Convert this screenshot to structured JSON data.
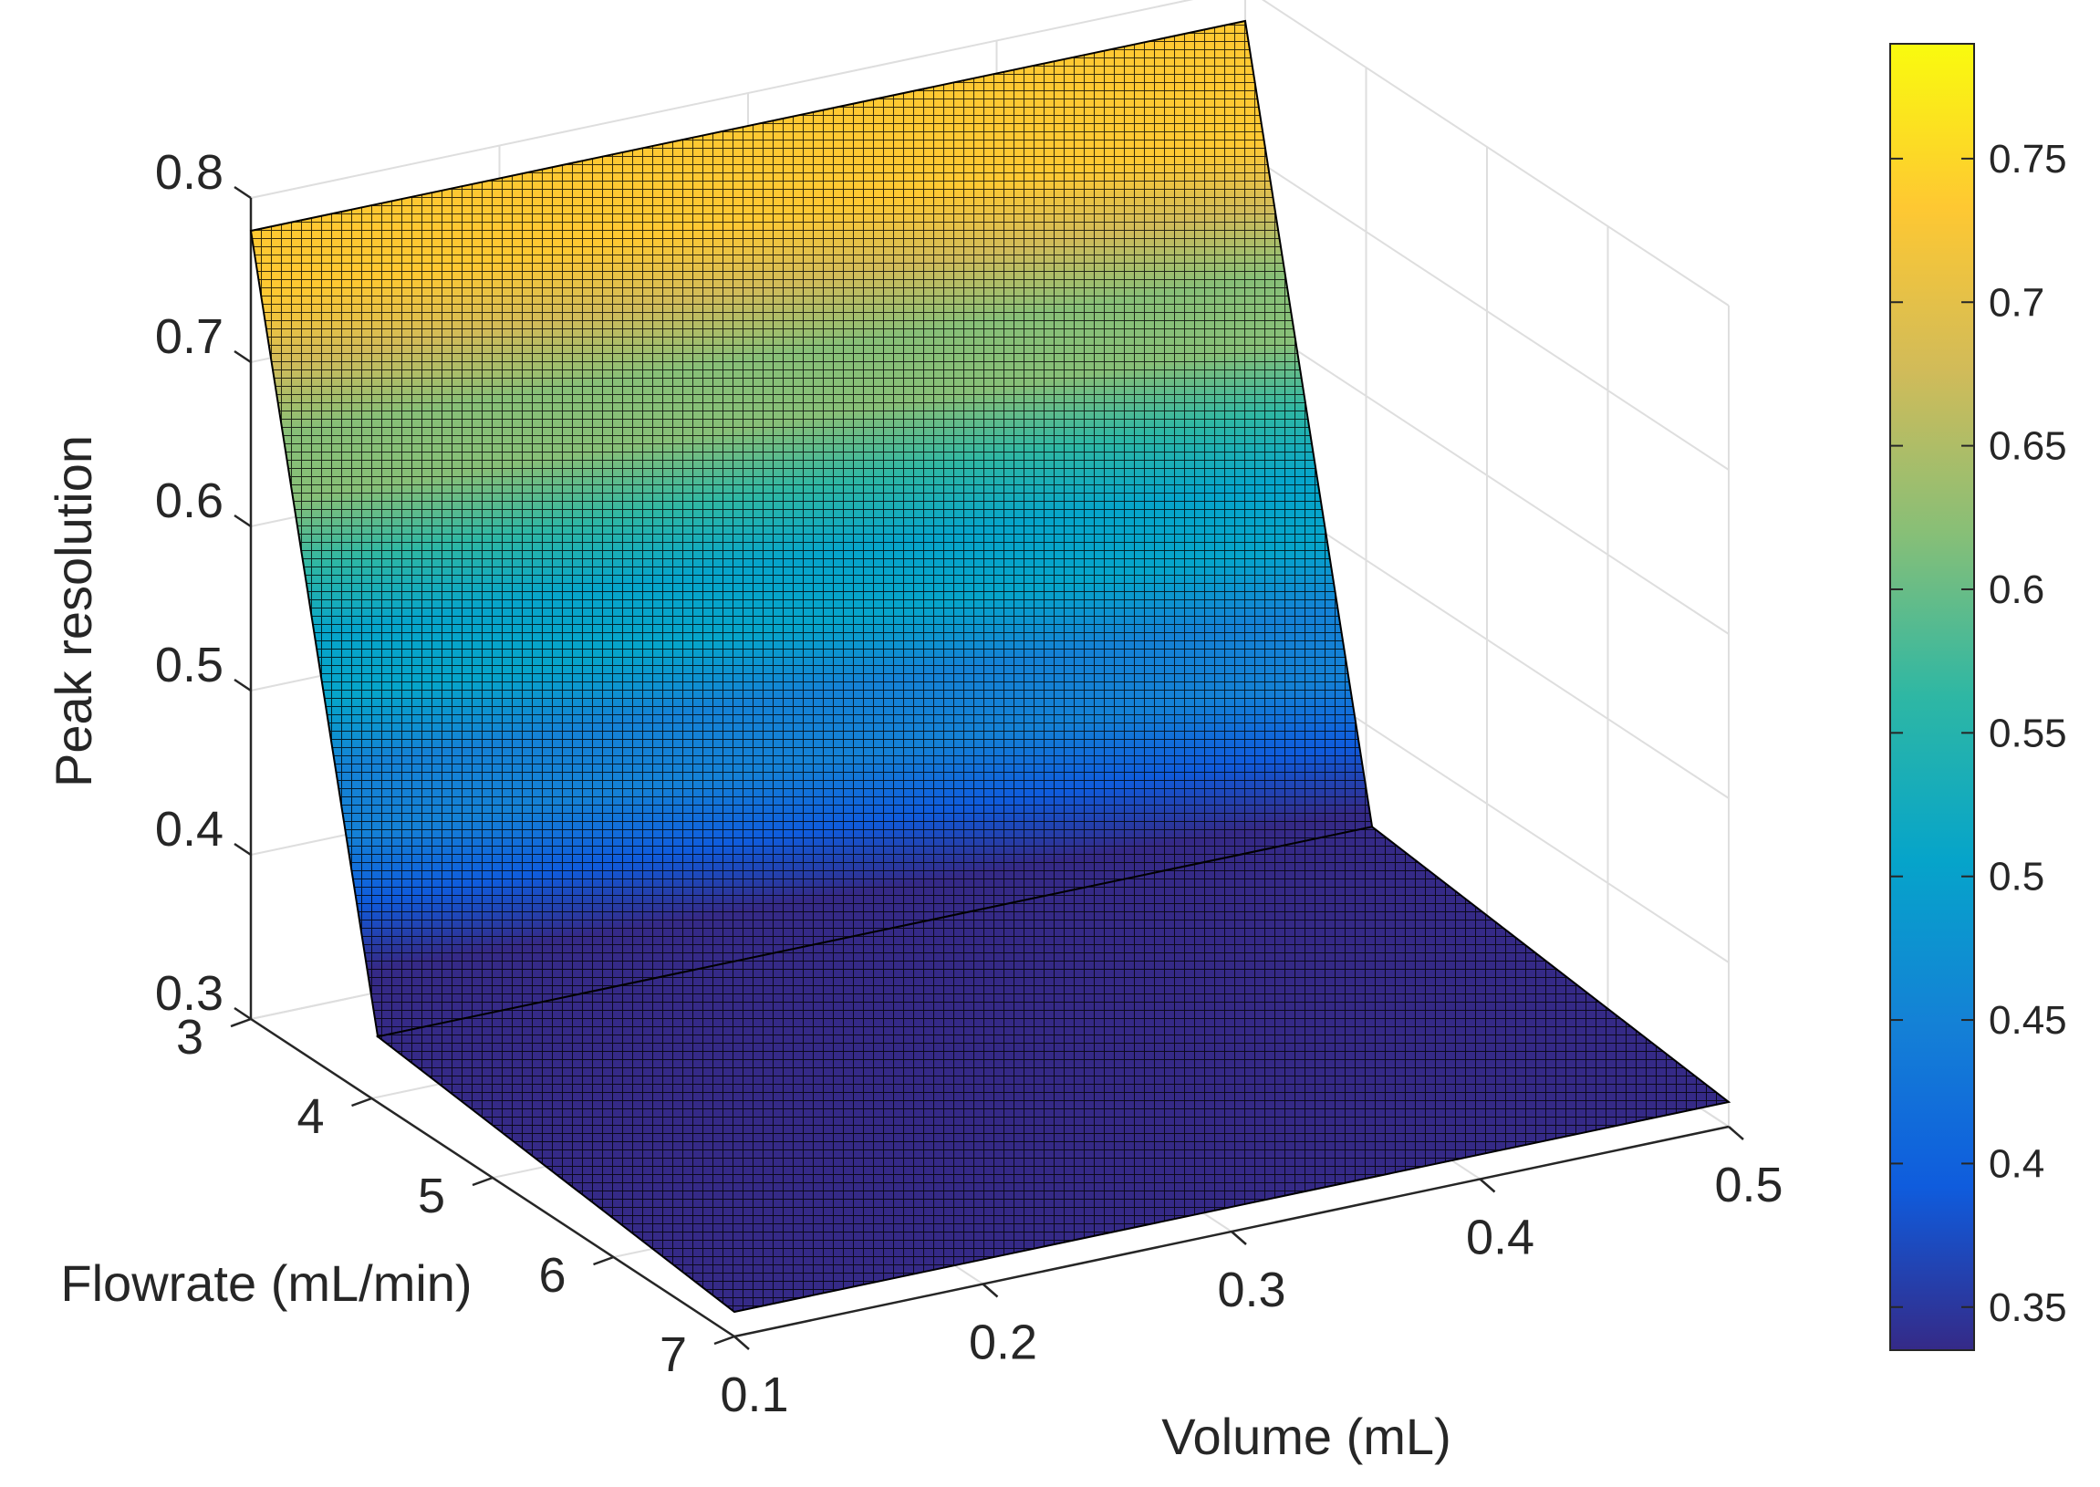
{
  "chart_data": {
    "type": "surface",
    "title": "",
    "zlabel": "Peak resolution",
    "flowrate_label": "Flowrate (mL/min)",
    "volume_label": "Volume (mL)",
    "flowrate_ticks": [
      "3",
      "4",
      "5",
      "6",
      "7"
    ],
    "volume_ticks": [
      "0.1",
      "0.2",
      "0.3",
      "0.4",
      "0.5"
    ],
    "z_ticks": [
      "0.3",
      "0.4",
      "0.5",
      "0.6",
      "0.7",
      "0.8"
    ],
    "flowrate_range": [
      3,
      7
    ],
    "volume_range": [
      0.1,
      0.5
    ],
    "zlim": [
      0.3,
      0.8
    ],
    "grid": true,
    "colormap": "parula",
    "surface_profile": {
      "flowrate": [
        3,
        4.05,
        7
      ],
      "peak_resolution": [
        0.78,
        0.34,
        0.315
      ]
    },
    "colorbar": {
      "ticks": [
        "0.35",
        "0.4",
        "0.45",
        "0.5",
        "0.55",
        "0.6",
        "0.65",
        "0.7",
        "0.75"
      ],
      "range": [
        0.335,
        0.79
      ],
      "placement": "right"
    }
  }
}
